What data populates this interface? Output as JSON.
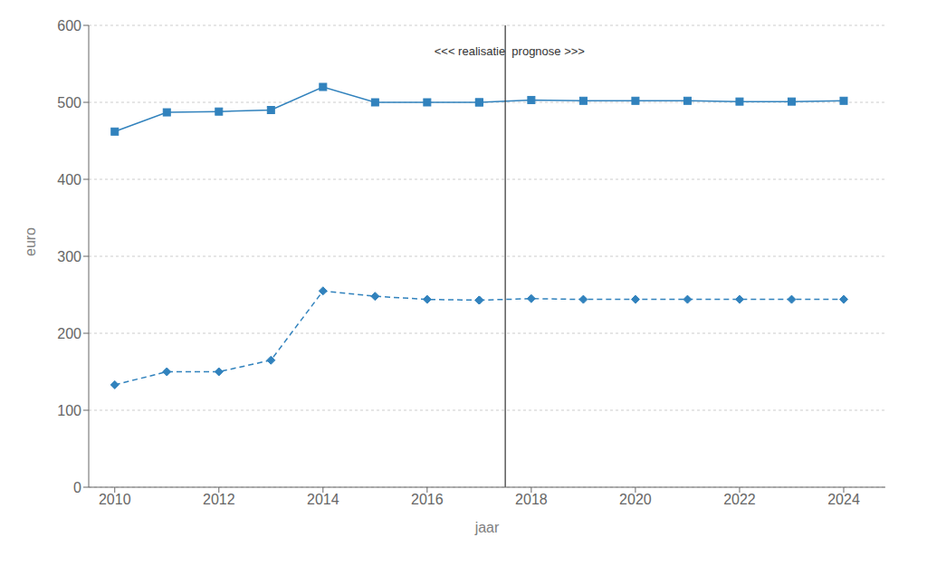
{
  "chart_data": {
    "type": "line",
    "xlabel": "jaar",
    "ylabel": "euro",
    "xlim": [
      2009.5,
      2024.8
    ],
    "xticks": [
      2010,
      2012,
      2014,
      2016,
      2018,
      2020,
      2022,
      2024
    ],
    "ylim": [
      0,
      600
    ],
    "yticks": [
      0,
      100,
      200,
      300,
      400,
      500,
      600
    ],
    "grid": "y",
    "series": [
      {
        "x": [
          2010,
          2011,
          2012,
          2013,
          2014,
          2015,
          2016,
          2017
        ],
        "values": [
          462,
          487,
          488,
          490,
          520,
          500,
          500,
          500
        ],
        "marker": "square",
        "line_style": "solid"
      },
      {
        "x": [
          2017,
          2018,
          2019,
          2020,
          2021,
          2022,
          2023,
          2024
        ],
        "values": [
          500,
          503,
          502,
          502,
          502,
          501,
          501,
          502
        ],
        "marker": "square",
        "line_style": "solid"
      },
      {
        "x": [
          2010,
          2011,
          2012,
          2013,
          2014,
          2015,
          2016,
          2017
        ],
        "values": [
          133,
          150,
          150,
          165,
          255,
          248,
          244,
          243
        ],
        "marker": "diamond",
        "line_style": "dashed"
      },
      {
        "x": [
          2017,
          2018,
          2019,
          2020,
          2021,
          2022,
          2023,
          2024
        ],
        "values": [
          243,
          245,
          244,
          244,
          244,
          244,
          244,
          244
        ],
        "marker": "diamond",
        "line_style": "dashed"
      }
    ],
    "reference_lines": [
      {
        "x": 2017.5
      }
    ],
    "annotations": [
      {
        "text": "<<< realisatie",
        "x": 2017.5,
        "y": 572
      },
      {
        "text": "  prognose >>>",
        "x": 2017.5,
        "y": 572
      }
    ]
  }
}
